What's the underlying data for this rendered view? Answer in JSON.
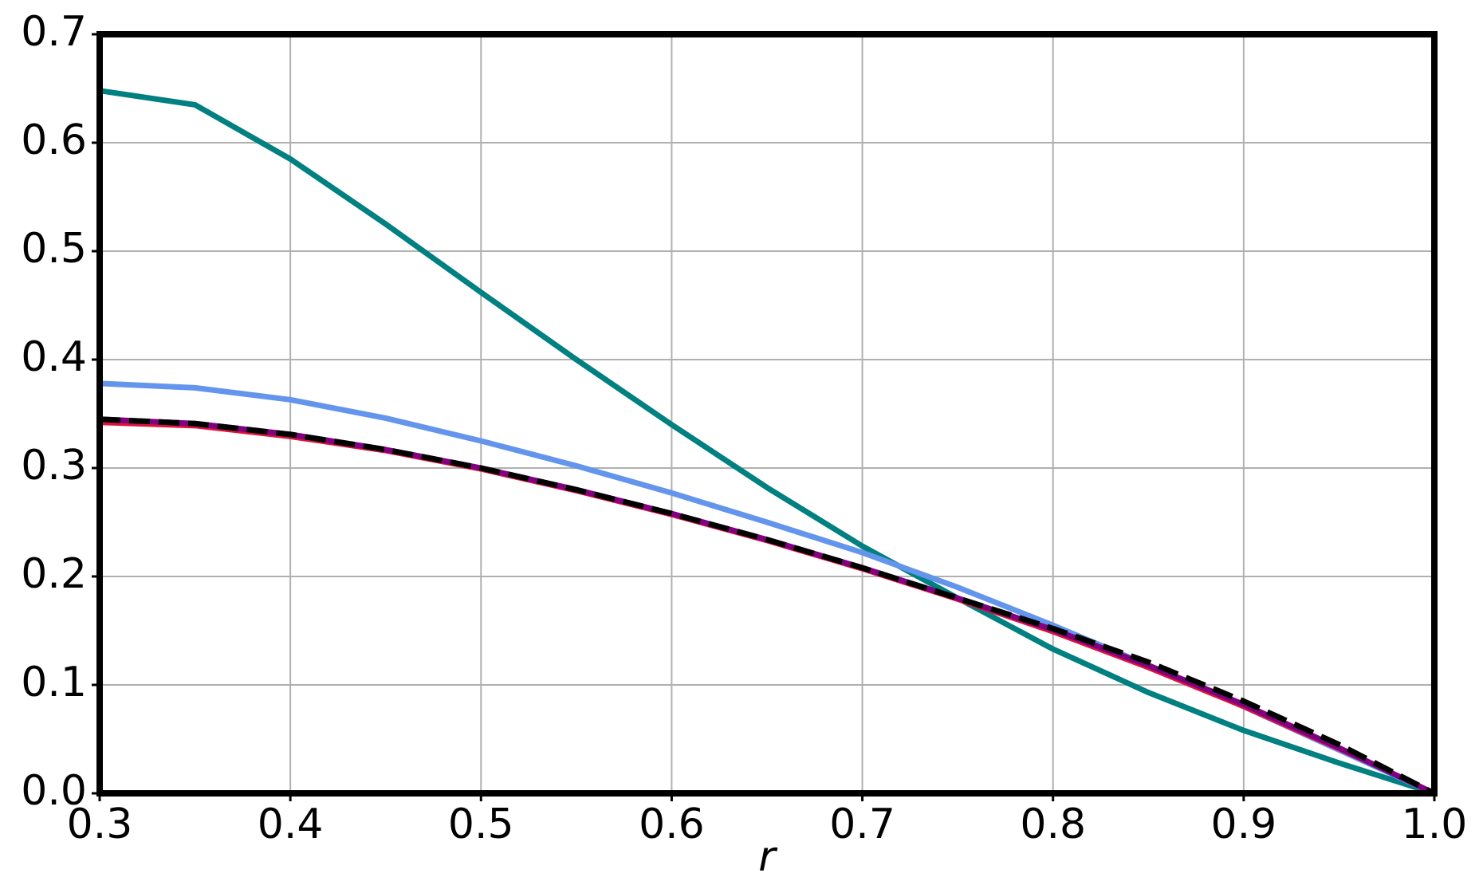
{
  "chart_data": {
    "type": "line",
    "x_label": "r",
    "x": [
      0.3,
      0.35,
      0.4,
      0.45,
      0.5,
      0.55,
      0.6,
      0.65,
      0.7,
      0.75,
      0.8,
      0.85,
      0.9,
      0.95,
      1.0
    ],
    "series": [
      {
        "color": "#008080",
        "values": [
          0.648,
          0.635,
          0.585,
          0.525,
          0.462,
          0.4,
          0.34,
          0.282,
          0.228,
          0.18,
          0.133,
          0.093,
          0.058,
          0.028,
          0.0
        ]
      },
      {
        "color": "#6495ed",
        "values": [
          0.378,
          0.374,
          0.363,
          0.346,
          0.325,
          0.302,
          0.277,
          0.25,
          0.222,
          0.19,
          0.155,
          0.118,
          0.08,
          0.04,
          0.0
        ]
      },
      {
        "color": "#dc143c",
        "values": [
          0.341,
          0.338,
          0.328,
          0.315,
          0.298,
          0.278,
          0.256,
          0.232,
          0.206,
          0.178,
          0.148,
          0.115,
          0.079,
          0.04,
          0.0
        ]
      },
      {
        "color": "#800080",
        "values": [
          0.345,
          0.341,
          0.331,
          0.317,
          0.3,
          0.28,
          0.258,
          0.234,
          0.208,
          0.18,
          0.151,
          0.118,
          0.082,
          0.042,
          0.0
        ]
      },
      {
        "color": "#000000",
        "dashed": true,
        "values": [
          0.345,
          0.341,
          0.331,
          0.317,
          0.3,
          0.28,
          0.258,
          0.234,
          0.208,
          0.18,
          0.152,
          0.121,
          0.085,
          0.045,
          0.0
        ]
      }
    ],
    "xlim": [
      0.3,
      1.0
    ],
    "xticks": [
      0.3,
      0.4,
      0.5,
      0.6,
      0.7,
      0.8,
      0.9,
      {
        "value": 1.0,
        "label": "1.0"
      }
    ],
    "ylim": [
      0,
      0.7
    ],
    "yticks": [
      {
        "value": 0,
        "label": "0.0"
      },
      0.1,
      0.2,
      0.3,
      0.4,
      0.5,
      0.6,
      0.7
    ],
    "grid": true
  }
}
